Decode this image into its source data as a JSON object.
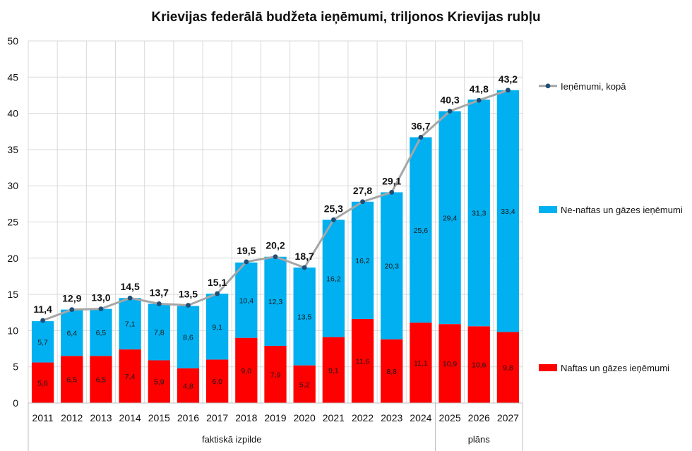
{
  "chart_data": {
    "type": "bar",
    "stacked": true,
    "title": "Krievijas federālā budžeta ieņēmumi, triljonos Krievijas rubļu",
    "categories": [
      "2011",
      "2012",
      "2013",
      "2014",
      "2015",
      "2016",
      "2017",
      "2018",
      "2019",
      "2020",
      "2021",
      "2022",
      "2023",
      "2024",
      "2025",
      "2026",
      "2027"
    ],
    "series": [
      {
        "name": "Naftas un gāzes ieņēmumi",
        "color": "#ff0000",
        "values": [
          5.6,
          6.5,
          6.5,
          7.4,
          5.9,
          4.8,
          6.0,
          9.0,
          7.9,
          5.2,
          9.1,
          11.6,
          8.8,
          11.1,
          10.9,
          10.6,
          9.8
        ],
        "labels": [
          "5,6",
          "6,5",
          "6,5",
          "7,4",
          "5,9",
          "4,8",
          "6,0",
          "9,0",
          "7,9",
          "5,2",
          "9,1",
          "11,6",
          "8,8",
          "11,1",
          "10,9",
          "10,6",
          "9,8"
        ]
      },
      {
        "name": "Ne-naftas un gāzes ieņēmumi",
        "color": "#00b0f0",
        "values": [
          5.7,
          6.4,
          6.5,
          7.1,
          7.8,
          8.6,
          9.1,
          10.4,
          12.3,
          13.5,
          16.2,
          16.2,
          20.3,
          25.6,
          29.4,
          31.3,
          33.4
        ],
        "labels": [
          "5,7",
          "6,4",
          "6,5",
          "7,1",
          "7,8",
          "8,6",
          "9,1",
          "10,4",
          "12,3",
          "13,5",
          "16,2",
          "16,2",
          "20,3",
          "25,6",
          "29,4",
          "31,3",
          "33,4"
        ]
      }
    ],
    "line": {
      "name": "Ieņēmumi, kopā",
      "color": "#a6a6a6",
      "marker_color": "#1f4e79",
      "values": [
        11.4,
        12.9,
        13.0,
        14.5,
        13.7,
        13.5,
        15.1,
        19.5,
        20.2,
        18.7,
        25.3,
        27.8,
        29.1,
        36.7,
        40.3,
        41.8,
        43.2
      ],
      "labels": [
        "11,4",
        "12,9",
        "13,0",
        "14,5",
        "13,7",
        "13,5",
        "15,1",
        "19,5",
        "20,2",
        "18,7",
        "25,3",
        "27,8",
        "29,1",
        "36,7",
        "40,3",
        "41,8",
        "43,2"
      ]
    },
    "yticks": [
      0,
      5,
      10,
      15,
      20,
      25,
      30,
      35,
      40,
      45,
      50
    ],
    "ylim": [
      0,
      50
    ],
    "grid": true,
    "legend": "right",
    "groups": [
      {
        "label": "faktiskā izpilde",
        "from": "2011",
        "to": "2024"
      },
      {
        "label": "plāns",
        "from": "2025",
        "to": "2027"
      }
    ]
  }
}
